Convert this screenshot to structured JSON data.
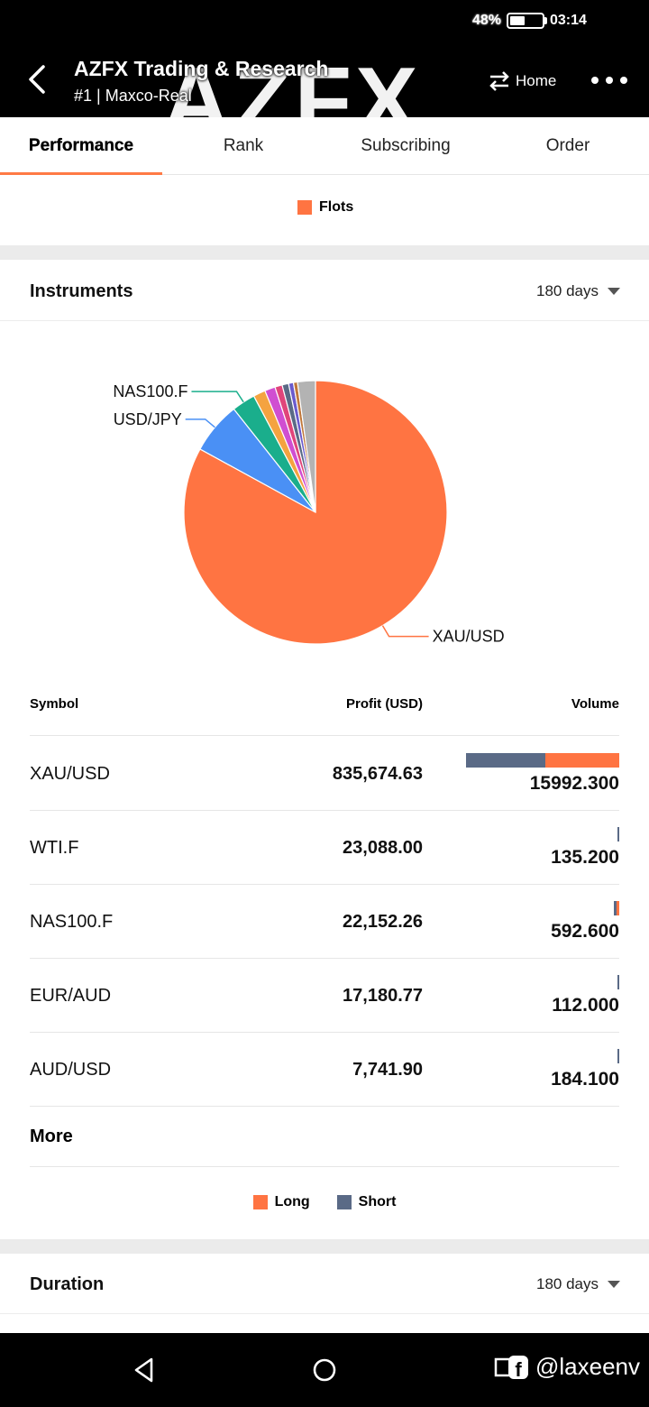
{
  "status": {
    "battery": "48%",
    "battery_level": 0.48,
    "time": "03:14"
  },
  "header": {
    "watermark": "AZFX",
    "title": "AZFX Trading & Research",
    "subtitle": "#1 | Maxco-Real",
    "home_label": "Home"
  },
  "tabs": [
    {
      "label": "Performance",
      "active": true
    },
    {
      "label": "Rank",
      "active": false
    },
    {
      "label": "Subscribing",
      "active": false
    },
    {
      "label": "Order",
      "active": false
    }
  ],
  "flots_legend": {
    "label": "Flots",
    "color": "#ff7442"
  },
  "instruments": {
    "title": "Instruments",
    "period": "180 days"
  },
  "chart_data": {
    "type": "pie",
    "labels_shown": [
      "NAS100.F",
      "USD/JPY",
      "XAU/USD"
    ],
    "slices": [
      {
        "label": "XAU/USD",
        "value": 83.3,
        "color": "#ff7442"
      },
      {
        "label": "USD/JPY",
        "value": 6.4,
        "color": "#4a90f5"
      },
      {
        "label": "NAS100.F",
        "value": 2.9,
        "color": "#1aae8c"
      },
      {
        "label": "",
        "value": 1.5,
        "color": "#f4a340"
      },
      {
        "label": "",
        "value": 1.3,
        "color": "#d04ed1"
      },
      {
        "label": "",
        "value": 0.9,
        "color": "#e0457a"
      },
      {
        "label": "",
        "value": 0.8,
        "color": "#5a6a86"
      },
      {
        "label": "",
        "value": 0.6,
        "color": "#6a5acd"
      },
      {
        "label": "",
        "value": 0.5,
        "color": "#c0773a"
      },
      {
        "label": "",
        "value": 2.2,
        "color": "#b3b3b3"
      }
    ]
  },
  "table": {
    "headers": {
      "symbol": "Symbol",
      "profit": "Profit (USD)",
      "volume": "Volume"
    },
    "rows": [
      {
        "symbol": "XAU/USD",
        "profit": "835,674.63",
        "volume": "15992.300",
        "volume_share": 1.0,
        "short_fraction": 0.52
      },
      {
        "symbol": "WTI.F",
        "profit": "23,088.00",
        "volume": "135.200",
        "volume_share": 0.008,
        "short_fraction": 1.0
      },
      {
        "symbol": "NAS100.F",
        "profit": "22,152.26",
        "volume": "592.600",
        "volume_share": 0.037,
        "short_fraction": 0.6
      },
      {
        "symbol": "EUR/AUD",
        "profit": "17,180.77",
        "volume": "112.000",
        "volume_share": 0.007,
        "short_fraction": 1.0
      },
      {
        "symbol": "AUD/USD",
        "profit": "7,741.90",
        "volume": "184.100",
        "volume_share": 0.011,
        "short_fraction": 1.0
      }
    ],
    "more_label": "More"
  },
  "long_short_legend": {
    "long": {
      "label": "Long",
      "color": "#ff7442"
    },
    "short": {
      "label": "Short",
      "color": "#5a6a86"
    }
  },
  "duration": {
    "title": "Duration",
    "period": "180 days"
  },
  "navbar": {
    "watermark": "@laxeenv"
  }
}
